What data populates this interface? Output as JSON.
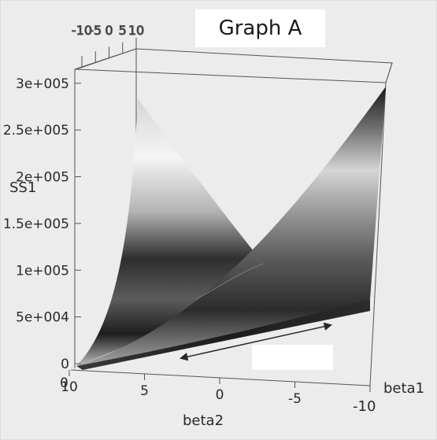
{
  "chart_data": {
    "type": "surface",
    "title": "Graph A",
    "zlabel": "SS1",
    "xlabel": "beta1",
    "ylabel": "beta2",
    "z_ticks": [
      "0",
      "5e+004",
      "1e+005",
      "1.5e+005",
      "2e+005",
      "2.5e+005",
      "3e+005"
    ],
    "beta1_ticks": [
      "-10",
      "-5",
      "0",
      "5",
      "10"
    ],
    "beta2_ticks": [
      "10",
      "5",
      "0",
      "-5",
      "-10"
    ],
    "beta2_corner_label": "-10",
    "zlim": [
      0,
      320000
    ],
    "beta1_range": [
      -10,
      10
    ],
    "beta2_range": [
      -10,
      10
    ],
    "colormap": "grayscale",
    "background": "#ececec"
  }
}
